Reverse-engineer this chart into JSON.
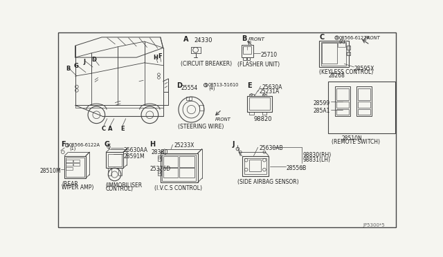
{
  "bg_color": "#f5f5f0",
  "line_color": "#444444",
  "text_color": "#222222",
  "fig_width": 6.4,
  "fig_height": 3.72,
  "dpi": 100,
  "border": [
    3,
    3,
    634,
    366
  ],
  "parts": {
    "A_label": "A",
    "A_part": "24330",
    "A_desc": "(CIRCUIT BREAKER)",
    "B_label": "B",
    "B_part": "25710",
    "B_desc": "(FLASHER UNIT)",
    "C_label": "C",
    "C_screw": "08566-6122A",
    "C_screw_n": "(2)",
    "C_part": "28595X",
    "C_desc": "(KEYLESS CONTROL)",
    "C_extra": "28268",
    "D_label": "D",
    "D_part": "25554",
    "D_screw": "08513-51610",
    "D_screw_n": "(4)",
    "D_desc": "(STEERING WIRE)",
    "E_label": "E",
    "E_part1": "25630A",
    "E_part2": "25231A",
    "E_main": "98820",
    "F_label": "F",
    "F_screw": "08566-6122A",
    "F_screw_n": "(1)",
    "F_part": "28510M",
    "F_desc1": "(REAR",
    "F_desc2": "WIPER AMP)",
    "G_label": "G",
    "G_part1": "25630AA",
    "G_part2": "28591M",
    "G_desc1": "(IMMOBILISER",
    "G_desc2": "CONTROL)",
    "H_label": "H",
    "H_part1": "25233X",
    "H_part2": "283B0",
    "H_part3": "25376D",
    "H_desc": "(I.V.C.S CONTROL)",
    "J_label": "J",
    "J_part1": "25630AB",
    "J_part2": "28556B",
    "J_rh": "98830(RH)",
    "J_lh": "98831(LH)",
    "J_desc": "(SIDE AIRBAG SENSOR)",
    "R_part1": "28599",
    "R_part2": "285A1",
    "R_main": "28510N",
    "R_desc": "(REMOTE SWITCH)",
    "footer": "JP5300*5"
  }
}
